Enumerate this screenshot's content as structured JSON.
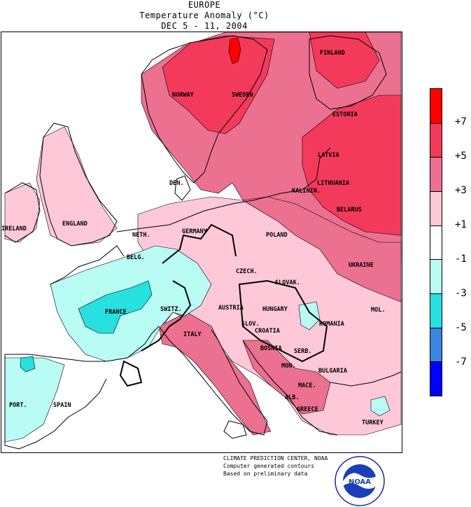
{
  "header": {
    "line1": "EUROPE",
    "line2": "Temperature Anomaly (°C)",
    "line3": "DEC 5 - 11, 2004"
  },
  "legend": {
    "labels": [
      "+7",
      "+5",
      "+3",
      "+1",
      "-1",
      "-3",
      "-5",
      "-7"
    ],
    "bins": [
      {
        "color": "#ff0000",
        "range": "> +7"
      },
      {
        "color": "#f43a5a",
        "range": "+5 to +7"
      },
      {
        "color": "#ec7090",
        "range": "+3 to +5"
      },
      {
        "color": "#ffc8d8",
        "range": "+1 to +3"
      },
      {
        "color": "#ffffff",
        "range": "-1 to +1"
      },
      {
        "color": "#b8fcf4",
        "range": "-3 to -1"
      },
      {
        "color": "#28e0e0",
        "range": "-5 to -3"
      },
      {
        "color": "#3a86e0",
        "range": "-7 to -5"
      },
      {
        "color": "#0000ff",
        "range": "< -7"
      }
    ]
  },
  "map": {
    "country_labels": [
      {
        "id": "finland",
        "text": "FINLAND"
      },
      {
        "id": "norway",
        "text": "NORWAY"
      },
      {
        "id": "sweden",
        "text": "SWEDEN"
      },
      {
        "id": "estonia",
        "text": "ESTONIA"
      },
      {
        "id": "latvia",
        "text": "LATVIA"
      },
      {
        "id": "lithuania",
        "text": "LITHUANIA"
      },
      {
        "id": "kalinin",
        "text": "KALININ."
      },
      {
        "id": "belarus",
        "text": "BELARUS"
      },
      {
        "id": "den",
        "text": "DEN."
      },
      {
        "id": "ireland",
        "text": "IRELAND"
      },
      {
        "id": "england",
        "text": "ENGLAND"
      },
      {
        "id": "neth",
        "text": "NETH."
      },
      {
        "id": "germany",
        "text": "GERMANY"
      },
      {
        "id": "poland",
        "text": "POLAND"
      },
      {
        "id": "belg",
        "text": "BELG."
      },
      {
        "id": "ukraine",
        "text": "UKRAINE"
      },
      {
        "id": "czech",
        "text": "CZECH."
      },
      {
        "id": "slovak",
        "text": "SLOVAK."
      },
      {
        "id": "mol",
        "text": "MOL."
      },
      {
        "id": "france",
        "text": "FRANCE"
      },
      {
        "id": "switz",
        "text": "SWITZ."
      },
      {
        "id": "austria",
        "text": "AUSTRIA"
      },
      {
        "id": "hungary",
        "text": "HUNGARY"
      },
      {
        "id": "romania",
        "text": "ROMANIA"
      },
      {
        "id": "slov",
        "text": "SLOV."
      },
      {
        "id": "croatia",
        "text": "CROATIA"
      },
      {
        "id": "italy",
        "text": "ITALY"
      },
      {
        "id": "bosnia",
        "text": "BOSNIA"
      },
      {
        "id": "serb",
        "text": "SERB."
      },
      {
        "id": "mon",
        "text": "MON."
      },
      {
        "id": "bulgaria",
        "text": "BULGARIA"
      },
      {
        "id": "mace",
        "text": "MACE."
      },
      {
        "id": "alb",
        "text": "ALB."
      },
      {
        "id": "greece",
        "text": "GREECE"
      },
      {
        "id": "port",
        "text": "PORT."
      },
      {
        "id": "spain",
        "text": "SPAIN"
      },
      {
        "id": "turkey",
        "text": "TURKEY"
      }
    ]
  },
  "credits": {
    "line1": "CLIMATE PREDICTION CENTER, NOAA",
    "line2": "Computer generated contours",
    "line3": "Based on preliminary data"
  },
  "logo": {
    "text": "NOAA"
  }
}
